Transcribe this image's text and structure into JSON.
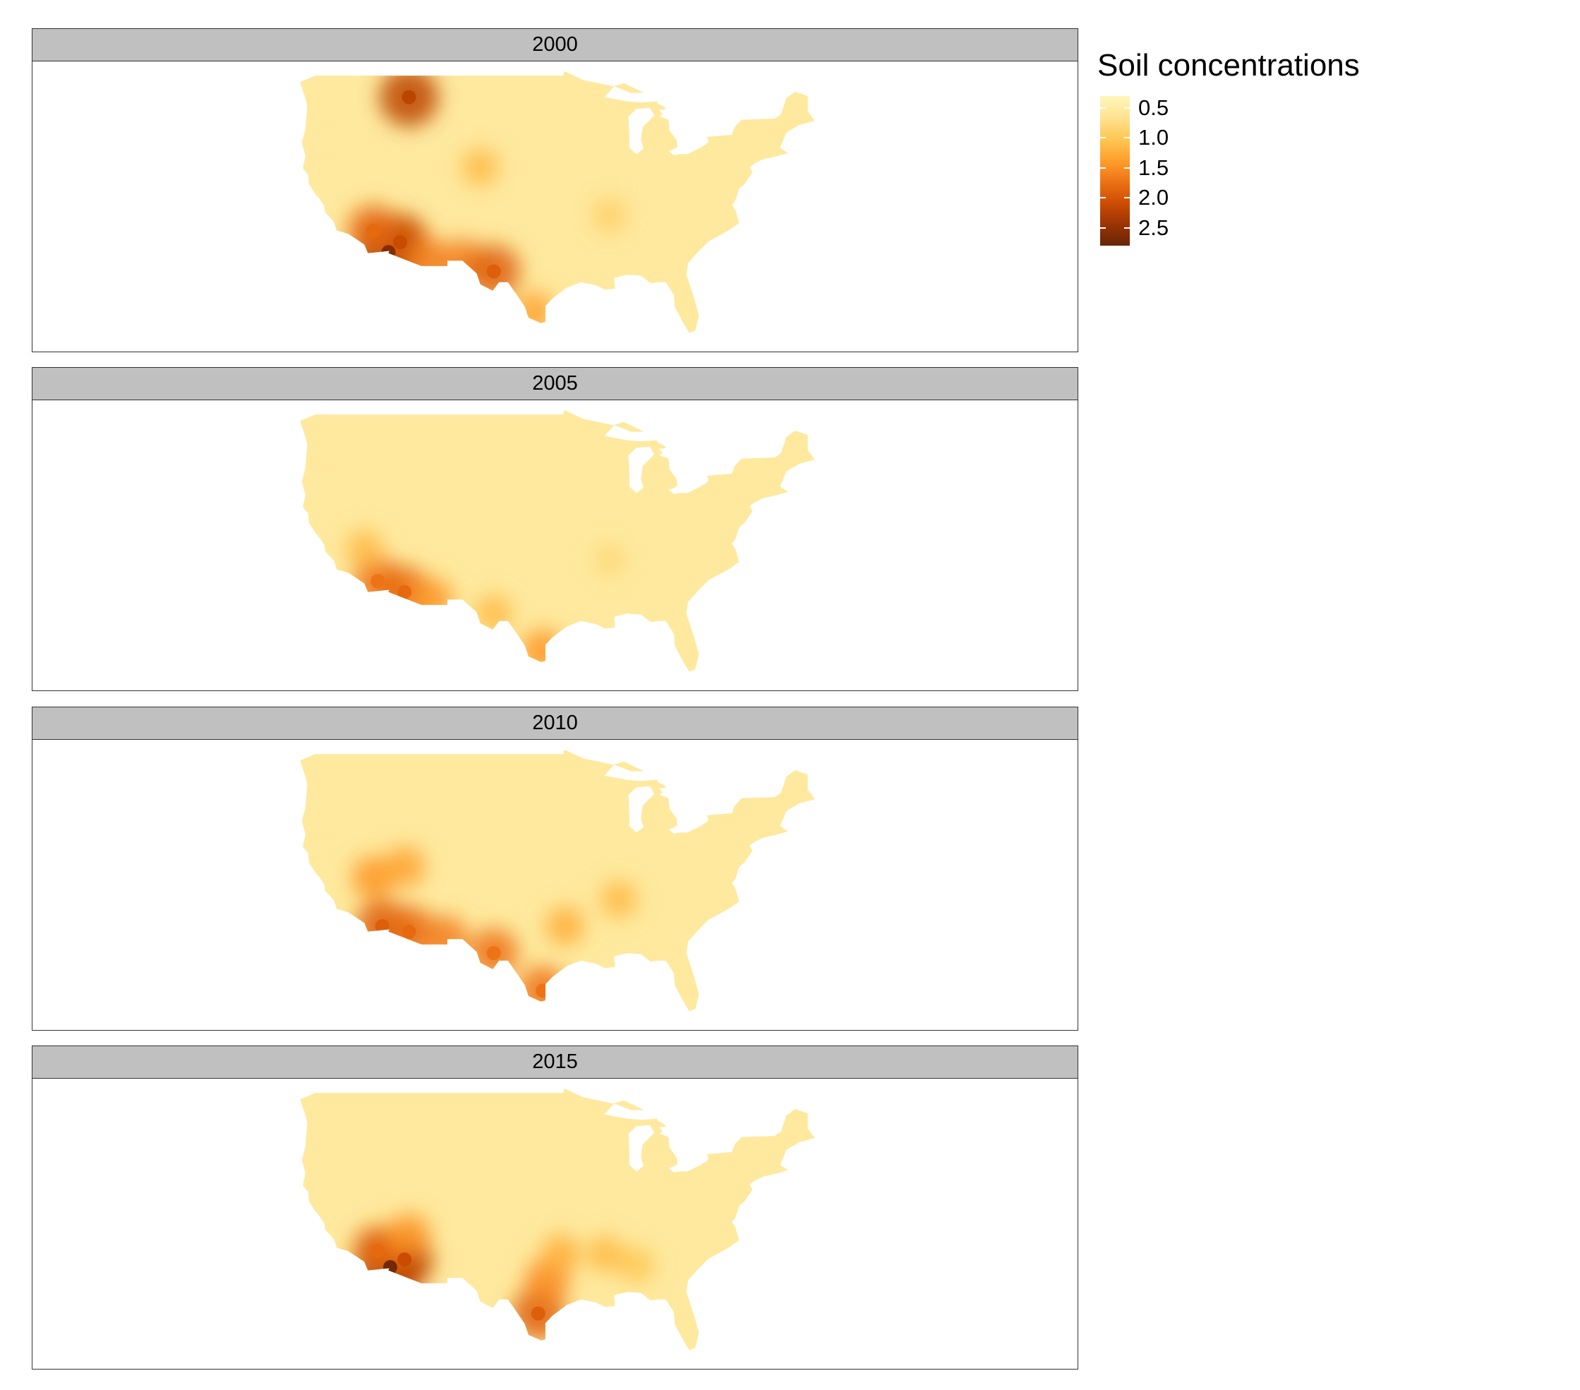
{
  "panels": [
    {
      "label": "2000",
      "year": 2000,
      "hotspots": [
        {
          "lon": -114.8,
          "lat": 32.6,
          "value": 2.6
        },
        {
          "lon": -113.5,
          "lat": 33.5,
          "value": 2.1
        },
        {
          "lon": -116.5,
          "lat": 34.6,
          "value": 1.8
        },
        {
          "lon": -110.5,
          "lat": 31.8,
          "value": 1.6
        },
        {
          "lon": -106.5,
          "lat": 31.6,
          "value": 1.6
        },
        {
          "lon": -103.0,
          "lat": 30.8,
          "value": 1.9
        },
        {
          "lon": -112.5,
          "lat": 47.0,
          "value": 2.2
        },
        {
          "lon": -104.5,
          "lat": 40.5,
          "value": 1.1
        },
        {
          "lon": -98.5,
          "lat": 27.0,
          "value": 1.3
        },
        {
          "lon": -90.0,
          "lat": 36.0,
          "value": 0.9
        }
      ]
    },
    {
      "label": "2005",
      "year": 2005,
      "hotspots": [
        {
          "lon": -116.0,
          "lat": 33.5,
          "value": 1.7
        },
        {
          "lon": -113.0,
          "lat": 32.5,
          "value": 1.8
        },
        {
          "lon": -110.0,
          "lat": 31.8,
          "value": 1.4
        },
        {
          "lon": -117.5,
          "lat": 36.5,
          "value": 1.1
        },
        {
          "lon": -103.0,
          "lat": 30.5,
          "value": 1.1
        },
        {
          "lon": -97.5,
          "lat": 27.0,
          "value": 1.4
        },
        {
          "lon": -90.0,
          "lat": 35.5,
          "value": 0.8
        }
      ]
    },
    {
      "label": "2010",
      "year": 2010,
      "hotspots": [
        {
          "lon": -115.5,
          "lat": 33.0,
          "value": 1.9
        },
        {
          "lon": -112.5,
          "lat": 32.5,
          "value": 1.8
        },
        {
          "lon": -108.5,
          "lat": 31.8,
          "value": 1.6
        },
        {
          "lon": -116.5,
          "lat": 37.5,
          "value": 1.4
        },
        {
          "lon": -113.0,
          "lat": 38.5,
          "value": 1.3
        },
        {
          "lon": -103.0,
          "lat": 30.5,
          "value": 1.7
        },
        {
          "lon": -97.5,
          "lat": 27.0,
          "value": 1.7
        },
        {
          "lon": -95.0,
          "lat": 33.0,
          "value": 1.2
        },
        {
          "lon": -89.0,
          "lat": 35.5,
          "value": 1.1
        }
      ]
    },
    {
      "label": "2015",
      "year": 2015,
      "hotspots": [
        {
          "lon": -114.6,
          "lat": 32.8,
          "value": 2.7
        },
        {
          "lon": -113.0,
          "lat": 33.5,
          "value": 2.1
        },
        {
          "lon": -116.0,
          "lat": 34.3,
          "value": 1.8
        },
        {
          "lon": -112.5,
          "lat": 35.8,
          "value": 1.4
        },
        {
          "lon": -98.0,
          "lat": 28.5,
          "value": 1.9
        },
        {
          "lon": -97.0,
          "lat": 31.5,
          "value": 1.5
        },
        {
          "lon": -95.5,
          "lat": 34.0,
          "value": 1.2
        },
        {
          "lon": -90.5,
          "lat": 34.0,
          "value": 1.1
        },
        {
          "lon": -87.0,
          "lat": 33.0,
          "value": 1.0
        }
      ]
    }
  ],
  "legend": {
    "title": "Soil concentrations",
    "ticks": [
      "0.5",
      "1.0",
      "1.5",
      "2.0",
      "2.5"
    ],
    "tick_values": [
      0.5,
      1.0,
      1.5,
      2.0,
      2.5
    ],
    "range": [
      0.3,
      2.8
    ]
  },
  "colors": {
    "palette": [
      "#fff7bc",
      "#fee391",
      "#fec44f",
      "#fe9929",
      "#ec7014",
      "#cc4c02",
      "#993404",
      "#662506"
    ],
    "strip_background": "#c0c0c0",
    "frame_border": "#333333"
  }
}
